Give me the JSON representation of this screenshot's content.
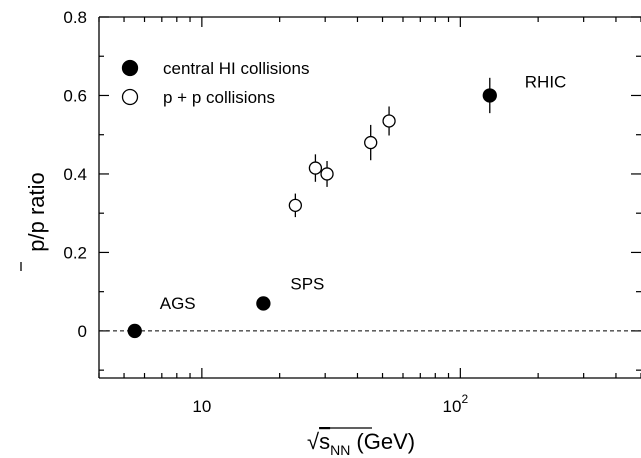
{
  "chart_data": {
    "type": "scatter",
    "x_scale": "log",
    "xlim": [
      4,
      500
    ],
    "ylim": [
      -0.12,
      0.8
    ],
    "xticks": [
      {
        "value": 10,
        "label": "10"
      },
      {
        "value": 100,
        "label": "10",
        "exponent": "2"
      }
    ],
    "yticks": [
      {
        "value": 0,
        "label": "0"
      },
      {
        "value": 0.2,
        "label": "0.2"
      },
      {
        "value": 0.4,
        "label": "0.4"
      },
      {
        "value": 0.6,
        "label": "0.6"
      },
      {
        "value": 0.8,
        "label": "0.8"
      }
    ],
    "xlabel": {
      "prefix": "√",
      "main": "s",
      "sub": "NN",
      "suffix": " (GeV)"
    },
    "ylabel": {
      "main": "p/p ratio",
      "bar_over_first": true
    },
    "reference_line": {
      "y": 0,
      "style": "dashed"
    },
    "legend": {
      "position": "top-left",
      "entries": [
        {
          "label": "central HI collisions",
          "marker": "filled-circle"
        },
        {
          "label": "p + p collisions",
          "marker": "open-circle"
        }
      ]
    },
    "series": [
      {
        "name": "central HI collisions",
        "marker": "filled-circle",
        "points": [
          {
            "x": 5.5,
            "y": 0.0,
            "err": 0,
            "label": "AGS"
          },
          {
            "x": 17.3,
            "y": 0.07,
            "err": 0,
            "label": "SPS"
          },
          {
            "x": 130,
            "y": 0.6,
            "err": 0.045,
            "label": "RHIC"
          }
        ]
      },
      {
        "name": "p + p collisions",
        "marker": "open-circle",
        "points": [
          {
            "x": 23,
            "y": 0.32,
            "err": 0.03
          },
          {
            "x": 27.5,
            "y": 0.415,
            "err": 0.035
          },
          {
            "x": 30.5,
            "y": 0.4,
            "err": 0.033
          },
          {
            "x": 45,
            "y": 0.48,
            "err": 0.045
          },
          {
            "x": 53,
            "y": 0.535,
            "err": 0.037
          }
        ]
      }
    ]
  }
}
